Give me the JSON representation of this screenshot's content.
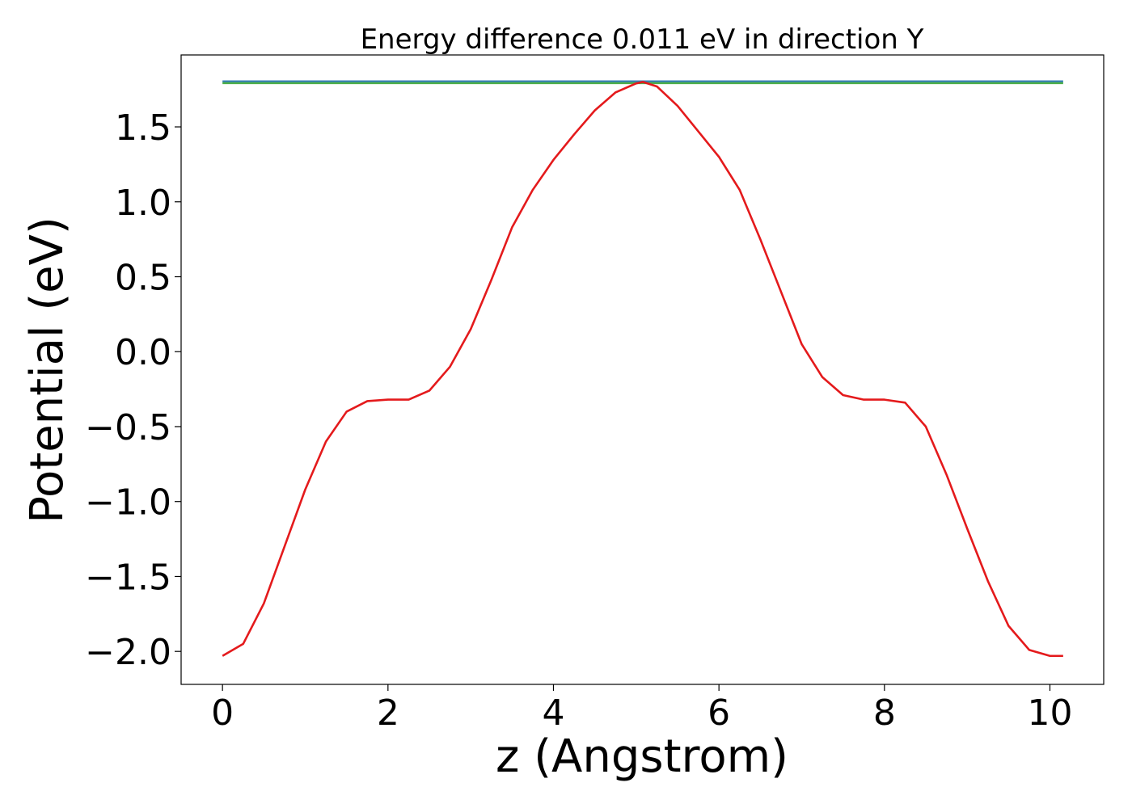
{
  "chart_data": {
    "type": "line",
    "title": "Energy difference 0.011 eV in direction Y",
    "xlabel": "z (Angstrom)",
    "ylabel": "Potential (eV)",
    "xlim": [
      -0.5,
      10.65
    ],
    "ylim": [
      -2.22,
      1.98
    ],
    "xticks": [
      0,
      2,
      4,
      6,
      8,
      10
    ],
    "xtick_labels": [
      "0",
      "2",
      "4",
      "6",
      "8",
      "10"
    ],
    "yticks": [
      -2.0,
      -1.5,
      -1.0,
      -0.5,
      0.0,
      0.5,
      1.0,
      1.5
    ],
    "ytick_labels": [
      "−2.0",
      "−1.5",
      "−1.0",
      "−0.5",
      "0.0",
      "0.5",
      "1.0",
      "1.5"
    ],
    "grid": false,
    "series": [
      {
        "color": "#e41a1c",
        "x": [
          0.0,
          0.25,
          0.5,
          0.75,
          1.0,
          1.25,
          1.5,
          1.75,
          2.0,
          2.25,
          2.5,
          2.75,
          3.0,
          3.25,
          3.5,
          3.75,
          4.0,
          4.25,
          4.5,
          4.75,
          5.0,
          5.08,
          5.25,
          5.5,
          5.75,
          6.0,
          6.25,
          6.5,
          6.75,
          7.0,
          7.25,
          7.5,
          7.75,
          8.0,
          8.25,
          8.5,
          8.75,
          9.0,
          9.25,
          9.5,
          9.75,
          10.0,
          10.16
        ],
        "y": [
          -2.03,
          -1.95,
          -1.68,
          -1.3,
          -0.92,
          -0.6,
          -0.4,
          -0.33,
          -0.32,
          -0.32,
          -0.26,
          -0.1,
          0.15,
          0.48,
          0.83,
          1.08,
          1.28,
          1.45,
          1.61,
          1.73,
          1.79,
          1.8,
          1.77,
          1.64,
          1.47,
          1.3,
          1.08,
          0.75,
          0.4,
          0.05,
          -0.17,
          -0.29,
          -0.32,
          -0.32,
          -0.34,
          -0.5,
          -0.82,
          -1.18,
          -1.53,
          -1.83,
          -1.99,
          -2.03,
          -2.03
        ]
      },
      {
        "color": "#377eb8",
        "x": [
          0.0,
          10.16
        ],
        "y": [
          1.803,
          1.803
        ]
      },
      {
        "color": "#4daf4a",
        "x": [
          0.0,
          10.16
        ],
        "y": [
          1.792,
          1.792
        ]
      }
    ]
  }
}
